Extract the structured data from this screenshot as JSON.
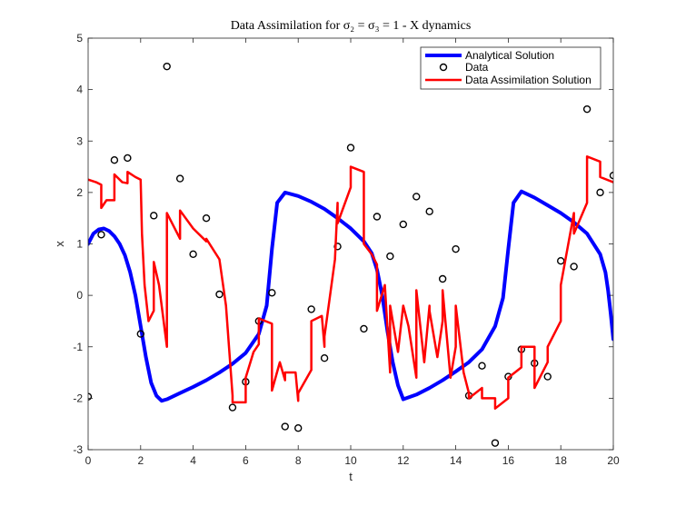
{
  "chart_data": {
    "type": "line",
    "title": "Data Assimilation for σ₂ = σ₃ = 1 - X dynamics",
    "xlabel": "t",
    "ylabel": "x",
    "xlim": [
      0,
      20
    ],
    "ylim": [
      -3,
      5
    ],
    "xticks": [
      0,
      2,
      4,
      6,
      8,
      10,
      12,
      14,
      16,
      18,
      20
    ],
    "yticks": [
      -3,
      -2,
      -1,
      0,
      1,
      2,
      3,
      4,
      5
    ],
    "grid": false,
    "legend_position": "top-right",
    "series": [
      {
        "name": "Analytical Solution",
        "kind": "line",
        "color": "#0000ff",
        "x": [
          0,
          0.2,
          0.4,
          0.6,
          0.8,
          1.0,
          1.2,
          1.4,
          1.6,
          1.8,
          2.0,
          2.2,
          2.4,
          2.6,
          2.8,
          3.0,
          3.5,
          4.0,
          4.5,
          5.0,
          5.5,
          6.0,
          6.5,
          6.8,
          7.0,
          7.2,
          7.5,
          8.0,
          8.5,
          9.0,
          9.5,
          10.0,
          10.5,
          10.8,
          11.0,
          11.2,
          11.4,
          11.6,
          11.8,
          12.0,
          12.5,
          13.0,
          13.5,
          14.0,
          14.5,
          15.0,
          15.5,
          15.8,
          16.0,
          16.2,
          16.5,
          17.0,
          17.5,
          18.0,
          18.5,
          19.0,
          19.5,
          19.7,
          19.8,
          19.9,
          20.0
        ],
        "y": [
          1.0,
          1.2,
          1.28,
          1.3,
          1.25,
          1.15,
          1.0,
          0.78,
          0.45,
          0.0,
          -0.6,
          -1.2,
          -1.7,
          -1.95,
          -2.05,
          -2.02,
          -1.9,
          -1.78,
          -1.65,
          -1.5,
          -1.33,
          -1.12,
          -0.75,
          -0.2,
          0.9,
          1.8,
          2.0,
          1.93,
          1.82,
          1.68,
          1.5,
          1.3,
          1.05,
          0.82,
          0.5,
          0.0,
          -0.7,
          -1.3,
          -1.75,
          -2.02,
          -1.93,
          -1.8,
          -1.65,
          -1.48,
          -1.3,
          -1.05,
          -0.6,
          -0.05,
          0.9,
          1.8,
          2.02,
          1.9,
          1.75,
          1.6,
          1.42,
          1.2,
          0.8,
          0.45,
          0.1,
          -0.35,
          -0.85
        ]
      },
      {
        "name": "Data",
        "kind": "markers",
        "color": "#000000",
        "x": [
          0,
          0.5,
          1.0,
          1.5,
          2.0,
          2.5,
          3.0,
          3.5,
          4.0,
          4.5,
          5.0,
          5.5,
          6.0,
          6.5,
          7.0,
          7.5,
          8.0,
          8.5,
          9.0,
          9.5,
          10.0,
          10.5,
          11.0,
          11.5,
          12.0,
          12.5,
          13.0,
          13.5,
          14.0,
          14.5,
          15.0,
          15.5,
          16.0,
          16.5,
          17.0,
          17.5,
          18.0,
          18.5,
          19.0,
          19.5,
          20.0
        ],
        "y": [
          -1.97,
          1.18,
          2.63,
          2.67,
          -0.75,
          1.55,
          4.45,
          2.27,
          0.8,
          1.5,
          0.02,
          -2.18,
          -1.68,
          -0.5,
          0.05,
          -2.55,
          -2.58,
          -0.27,
          -1.22,
          0.95,
          2.87,
          -0.65,
          1.53,
          0.76,
          1.38,
          1.92,
          1.63,
          0.32,
          0.9,
          -1.95,
          -1.37,
          -2.87,
          -1.58,
          -1.05,
          -1.32,
          -1.58,
          0.67,
          0.56,
          3.62,
          2.0,
          2.33
        ]
      },
      {
        "name": "Data Assimilation Solution",
        "kind": "line",
        "color": "#ff0000",
        "x": [
          0,
          0.3,
          0.5,
          0.5,
          0.7,
          1.0,
          1.0,
          1.3,
          1.5,
          1.5,
          1.8,
          2.0,
          2.05,
          2.15,
          2.3,
          2.5,
          2.5,
          2.7,
          3.0,
          3.0,
          3.5,
          3.5,
          4.0,
          4.5,
          4.5,
          5.0,
          5.25,
          5.5,
          5.5,
          6.0,
          6.0,
          6.3,
          6.5,
          6.5,
          7.0,
          7.0,
          7.3,
          7.5,
          7.5,
          7.9,
          8.0,
          8.0,
          8.5,
          8.5,
          8.9,
          9.0,
          9.0,
          9.4,
          9.5,
          9.5,
          10.0,
          10.0,
          10.5,
          10.5,
          10.8,
          11.0,
          11.0,
          11.3,
          11.5,
          11.5,
          11.8,
          12.0,
          12.2,
          12.5,
          12.5,
          12.8,
          13.0,
          13.0,
          13.3,
          13.5,
          13.5,
          13.8,
          14.0,
          14.0,
          14.3,
          14.5,
          14.5,
          15.0,
          15.0,
          15.5,
          15.5,
          16.0,
          16.0,
          16.5,
          16.5,
          17.0,
          17.0,
          17.5,
          17.5,
          18.0,
          18.0,
          18.5,
          18.5,
          19.0,
          19.0,
          19.5,
          19.5,
          20.0
        ],
        "y": [
          2.25,
          2.2,
          2.15,
          1.7,
          1.85,
          1.85,
          2.35,
          2.2,
          2.18,
          2.4,
          2.3,
          2.25,
          1.2,
          0.2,
          -0.5,
          -0.3,
          0.65,
          0.2,
          -1.0,
          1.6,
          1.1,
          1.65,
          1.3,
          1.05,
          1.1,
          0.7,
          -0.2,
          -1.95,
          -2.08,
          -2.08,
          -1.6,
          -1.1,
          -0.95,
          -0.45,
          -0.55,
          -1.85,
          -1.3,
          -1.65,
          -1.5,
          -1.5,
          -2.05,
          -1.9,
          -1.45,
          -0.5,
          -0.4,
          -1.0,
          -0.8,
          0.7,
          1.8,
          1.4,
          2.1,
          2.5,
          2.4,
          1.0,
          0.8,
          0.6,
          -0.3,
          0.2,
          -1.5,
          -0.2,
          -1.1,
          -0.2,
          -0.6,
          -1.6,
          0.1,
          -1.3,
          -0.2,
          -0.3,
          -1.2,
          -0.5,
          0.1,
          -1.6,
          -1.0,
          -0.2,
          -1.5,
          -1.9,
          -2.0,
          -1.8,
          -2.0,
          -2.0,
          -2.2,
          -2.0,
          -1.6,
          -1.4,
          -1.0,
          -1.0,
          -1.8,
          -1.3,
          -1.0,
          -0.5,
          0.2,
          1.6,
          1.2,
          1.8,
          2.7,
          2.6,
          2.3,
          2.2
        ]
      }
    ]
  }
}
